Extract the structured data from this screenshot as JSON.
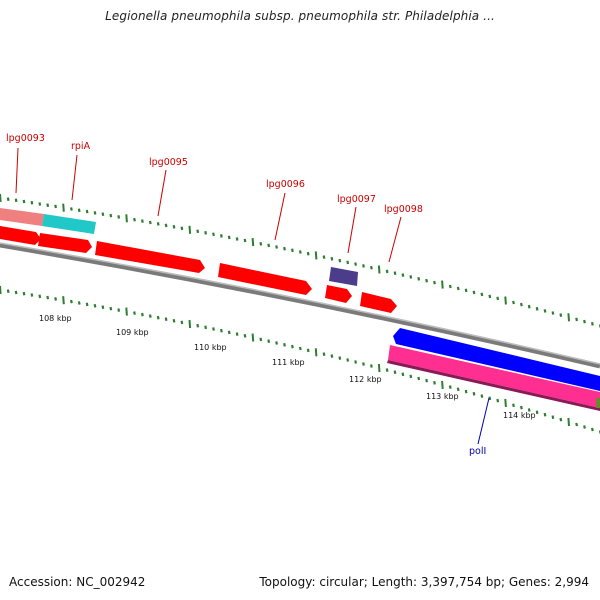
{
  "title": "Legionella pneumophila subsp. pneumophila str. Philadelphia ...",
  "footer": {
    "accession": "Accession: NC_002942",
    "stats": "Topology: circular; Length: 3,397,754 bp; Genes: 2,994"
  },
  "scale": {
    "tick_labels": [
      "108 kbp",
      "109 kbp",
      "110 kbp",
      "111 kbp",
      "112 kbp",
      "113 kbp",
      "114 kbp"
    ]
  },
  "genes": [
    {
      "label": "lpg0093",
      "strand": "forward",
      "color": "#ff0000"
    },
    {
      "label": "rpiA",
      "strand": "forward",
      "color": "#ff0000"
    },
    {
      "label": "lpg0095",
      "strand": "forward",
      "color": "#ff0000"
    },
    {
      "label": "lpg0096",
      "strand": "forward",
      "color": "#ff0000"
    },
    {
      "label": "lpg0097",
      "strand": "forward",
      "color": "#4b3c8c"
    },
    {
      "label": "lpg0098",
      "strand": "forward",
      "color": "#ff0000"
    },
    {
      "label": "polI",
      "strand": "reverse",
      "color": "#0000ff"
    }
  ],
  "colors": {
    "cds_forward": "#ff0000",
    "cds_reverse": "#0000ff",
    "rna_outer": "#ff2f92",
    "misc_outer": "#f08080",
    "teal_outer": "#20c8c8",
    "backbone": "#808080",
    "ticks": "#2e7d32",
    "label_forward": "#cc0000",
    "label_reverse": "#0000aa"
  }
}
